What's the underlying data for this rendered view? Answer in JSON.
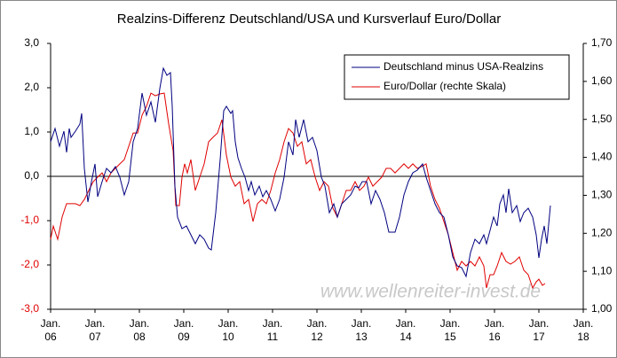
{
  "chart_data": {
    "type": "line",
    "title": "Realzins-Differenz  Deutschland/USA und Kursverlauf Euro/Dollar",
    "annotation": "www.wellenreiter-invest.de",
    "xlim": [
      2006,
      2018
    ],
    "xticks": [
      {
        "value": 2006,
        "label": "Jan. 06"
      },
      {
        "value": 2007,
        "label": "Jan. 07"
      },
      {
        "value": 2008,
        "label": "Jan. 08"
      },
      {
        "value": 2009,
        "label": "Jan. 09"
      },
      {
        "value": 2010,
        "label": "Jan. 10"
      },
      {
        "value": 2011,
        "label": "Jan. 11"
      },
      {
        "value": 2012,
        "label": "Jan. 12"
      },
      {
        "value": 2013,
        "label": "Jan. 13"
      },
      {
        "value": 2014,
        "label": "Jan. 14"
      },
      {
        "value": 2015,
        "label": "Jan. 15"
      },
      {
        "value": 2016,
        "label": "Jan. 16"
      },
      {
        "value": 2017,
        "label": "Jan. 17"
      },
      {
        "value": 2018,
        "label": "Jan. 18"
      }
    ],
    "ylim": [
      -3,
      3
    ],
    "yticks": [
      {
        "value": 3,
        "label": "3,0"
      },
      {
        "value": 2,
        "label": "2,0"
      },
      {
        "value": 1,
        "label": "1,0"
      },
      {
        "value": 0,
        "label": "0,0"
      },
      {
        "value": -1,
        "label": "-1,0"
      },
      {
        "value": -2,
        "label": "-2,0"
      },
      {
        "value": -3,
        "label": "-3,0"
      }
    ],
    "negative_tick_color": "#e00000",
    "y2lim": [
      1.0,
      1.7
    ],
    "y2ticks": [
      {
        "value": 1.7,
        "label": "1,70"
      },
      {
        "value": 1.6,
        "label": "1,60"
      },
      {
        "value": 1.5,
        "label": "1,50"
      },
      {
        "value": 1.4,
        "label": "1,40"
      },
      {
        "value": 1.3,
        "label": "1,30"
      },
      {
        "value": 1.2,
        "label": "1,20"
      },
      {
        "value": 1.1,
        "label": "1,10"
      },
      {
        "value": 1.0,
        "label": "1,00"
      }
    ],
    "zero_line": true,
    "grid": false,
    "legend": "top-right",
    "series": [
      {
        "name": "Deutschland minus USA-Realzins",
        "color": "#000080",
        "axis": "y",
        "x": [
          2006.0,
          2006.1,
          2006.2,
          2006.3,
          2006.36,
          2006.42,
          2006.46,
          2006.56,
          2006.66,
          2006.7,
          2006.76,
          2006.84,
          2006.92,
          2007.0,
          2007.06,
          2007.16,
          2007.26,
          2007.36,
          2007.46,
          2007.56,
          2007.66,
          2007.76,
          2007.86,
          2007.96,
          2008.06,
          2008.16,
          2008.26,
          2008.36,
          2008.46,
          2008.54,
          2008.62,
          2008.7,
          2008.74,
          2008.8,
          2008.86,
          2008.96,
          2009.06,
          2009.16,
          2009.26,
          2009.36,
          2009.46,
          2009.56,
          2009.62,
          2009.72,
          2009.82,
          2009.9,
          2009.96,
          2010.06,
          2010.1,
          2010.16,
          2010.22,
          2010.3,
          2010.38,
          2010.46,
          2010.52,
          2010.6,
          2010.7,
          2010.78,
          2010.86,
          2010.96,
          2011.06,
          2011.16,
          2011.26,
          2011.36,
          2011.46,
          2011.52,
          2011.6,
          2011.7,
          2011.8,
          2011.9,
          2012.0,
          2012.1,
          2012.18,
          2012.28,
          2012.38,
          2012.46,
          2012.56,
          2012.66,
          2012.76,
          2012.86,
          2012.94,
          2013.02,
          2013.12,
          2013.22,
          2013.32,
          2013.42,
          2013.52,
          2013.62,
          2013.76,
          2013.86,
          2013.96,
          2014.06,
          2014.16,
          2014.26,
          2014.38,
          2014.46,
          2014.56,
          2014.66,
          2014.76,
          2014.86,
          2014.96,
          2015.06,
          2015.16,
          2015.26,
          2015.36,
          2015.46,
          2015.56,
          2015.66,
          2015.76,
          2015.82,
          2015.9,
          2015.98,
          2016.06,
          2016.12,
          2016.2,
          2016.26,
          2016.32,
          2016.4,
          2016.5,
          2016.58,
          2016.66,
          2016.76,
          2016.86,
          2016.94,
          2017.0,
          2017.06,
          2017.12,
          2017.18,
          2017.26
        ],
        "values": [
          0.78,
          1.08,
          0.68,
          1.02,
          0.54,
          1.08,
          0.88,
          1.02,
          1.18,
          1.42,
          0.18,
          -0.58,
          -0.12,
          0.28,
          -0.46,
          -0.12,
          0.18,
          0.08,
          0.22,
          -0.02,
          -0.42,
          -0.12,
          0.78,
          1.08,
          1.88,
          1.38,
          1.68,
          1.22,
          1.98,
          2.44,
          2.28,
          2.34,
          1.58,
          -0.22,
          -0.92,
          -1.18,
          -1.12,
          -1.32,
          -1.52,
          -1.32,
          -1.42,
          -1.62,
          -1.66,
          -0.82,
          0.38,
          1.48,
          1.58,
          1.42,
          1.48,
          0.78,
          0.42,
          0.18,
          -0.02,
          -0.32,
          -0.12,
          -0.42,
          -0.22,
          -0.46,
          -0.32,
          -0.52,
          -0.78,
          -0.52,
          -0.02,
          0.78,
          0.48,
          1.28,
          0.88,
          1.28,
          0.78,
          0.88,
          0.58,
          -0.02,
          -0.22,
          -0.82,
          -0.62,
          -0.92,
          -0.62,
          -0.52,
          -0.42,
          -0.22,
          -0.26,
          -0.12,
          -0.12,
          -0.62,
          -0.32,
          -0.52,
          -0.82,
          -1.26,
          -1.26,
          -0.92,
          -0.42,
          -0.12,
          0.08,
          0.14,
          0.28,
          -0.02,
          -0.32,
          -0.62,
          -0.82,
          -0.92,
          -1.32,
          -1.82,
          -2.02,
          -2.06,
          -2.26,
          -1.72,
          -1.42,
          -1.52,
          -1.32,
          -1.52,
          -1.22,
          -0.92,
          -1.12,
          -0.62,
          -0.42,
          -0.82,
          -0.28,
          -0.82,
          -0.66,
          -1.02,
          -0.82,
          -0.72,
          -0.92,
          -1.32,
          -1.84,
          -1.42,
          -1.12,
          -1.52,
          -0.66
        ]
      },
      {
        "name": "Euro/Dollar (rechte Skala)",
        "color": "#e00000",
        "axis": "y2",
        "x": [
          2006.0,
          2006.06,
          2006.16,
          2006.26,
          2006.36,
          2006.56,
          2006.66,
          2006.76,
          2006.86,
          2006.96,
          2007.06,
          2007.16,
          2007.26,
          2007.36,
          2007.46,
          2007.56,
          2007.66,
          2007.76,
          2007.86,
          2007.96,
          2008.06,
          2008.16,
          2008.26,
          2008.36,
          2008.46,
          2008.56,
          2008.66,
          2008.76,
          2008.82,
          2008.9,
          2008.96,
          2009.02,
          2009.08,
          2009.16,
          2009.26,
          2009.36,
          2009.46,
          2009.56,
          2009.66,
          2009.76,
          2009.86,
          2009.96,
          2010.06,
          2010.16,
          2010.26,
          2010.36,
          2010.46,
          2010.56,
          2010.66,
          2010.76,
          2010.86,
          2010.96,
          2011.06,
          2011.16,
          2011.26,
          2011.36,
          2011.46,
          2011.56,
          2011.66,
          2011.76,
          2011.86,
          2011.96,
          2012.06,
          2012.16,
          2012.26,
          2012.36,
          2012.46,
          2012.56,
          2012.66,
          2012.76,
          2012.86,
          2012.96,
          2013.06,
          2013.16,
          2013.26,
          2013.36,
          2013.46,
          2013.56,
          2013.66,
          2013.76,
          2013.86,
          2013.96,
          2014.06,
          2014.16,
          2014.26,
          2014.36,
          2014.46,
          2014.56,
          2014.66,
          2014.76,
          2014.86,
          2014.96,
          2015.06,
          2015.16,
          2015.26,
          2015.36,
          2015.46,
          2015.56,
          2015.66,
          2015.76,
          2015.82,
          2015.9,
          2015.98,
          2016.06,
          2016.16,
          2016.26,
          2016.36,
          2016.46,
          2016.56,
          2016.66,
          2016.76,
          2016.86,
          2016.94,
          2017.0,
          2017.08,
          2017.14
        ],
        "values": [
          1.184,
          1.219,
          1.184,
          1.243,
          1.278,
          1.278,
          1.273,
          1.289,
          1.313,
          1.336,
          1.348,
          1.359,
          1.336,
          1.359,
          1.371,
          1.383,
          1.394,
          1.429,
          1.464,
          1.464,
          1.511,
          1.534,
          1.569,
          1.562,
          1.567,
          1.569,
          1.488,
          1.418,
          1.273,
          1.273,
          1.348,
          1.383,
          1.359,
          1.394,
          1.313,
          1.348,
          1.383,
          1.441,
          1.453,
          1.464,
          1.499,
          1.406,
          1.348,
          1.324,
          1.336,
          1.278,
          1.289,
          1.231,
          1.278,
          1.289,
          1.278,
          1.313,
          1.359,
          1.394,
          1.441,
          1.476,
          1.464,
          1.429,
          1.441,
          1.383,
          1.394,
          1.348,
          1.313,
          1.336,
          1.324,
          1.266,
          1.243,
          1.278,
          1.313,
          1.313,
          1.336,
          1.313,
          1.324,
          1.348,
          1.324,
          1.336,
          1.348,
          1.371,
          1.371,
          1.359,
          1.371,
          1.383,
          1.371,
          1.383,
          1.371,
          1.376,
          1.383,
          1.324,
          1.289,
          1.266,
          1.231,
          1.196,
          1.149,
          1.103,
          1.126,
          1.114,
          1.126,
          1.114,
          1.138,
          1.114,
          1.056,
          1.091,
          1.091,
          1.114,
          1.149,
          1.126,
          1.119,
          1.126,
          1.138,
          1.103,
          1.091,
          1.056,
          1.072,
          1.079,
          1.063,
          1.068
        ]
      }
    ]
  }
}
